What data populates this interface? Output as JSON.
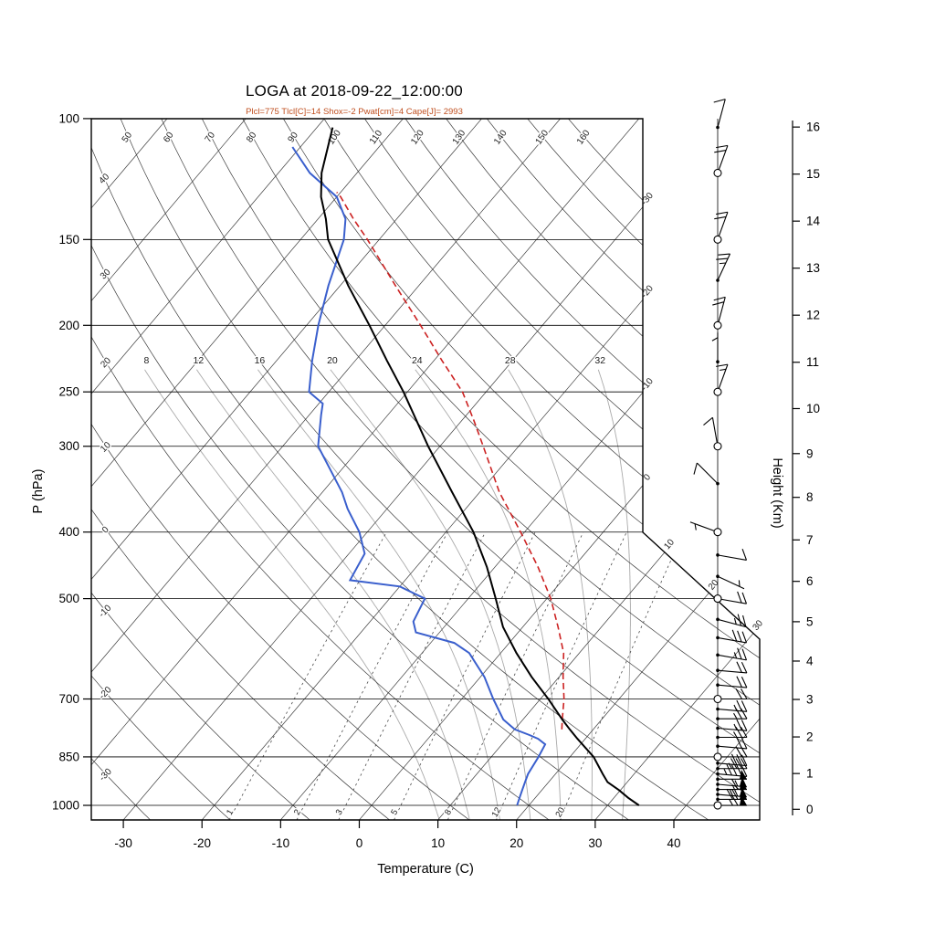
{
  "chart_data": {
    "type": "skewt_log_p",
    "title": "LOGA at 2018-09-22_12:00:00",
    "subtitle": "Plcl=775 Tlcl[C]=14 Shox=-2 Pwat[cm]=4 Cape[J]= 2993",
    "xlabel": "Temperature (C)",
    "ylabel_left": "P (hPa)",
    "ylabel_right": "Height (Km)",
    "axes": {
      "pressure_ticks": [
        100,
        150,
        200,
        250,
        300,
        400,
        500,
        700,
        850,
        1000
      ],
      "pressure_range_hpa": [
        100,
        1050
      ],
      "temperature_ticks_c": [
        -30,
        -20,
        -10,
        0,
        10,
        20,
        30,
        40
      ],
      "height_ticks_km": [
        0,
        1,
        2,
        3,
        4,
        5,
        6,
        7,
        8,
        9,
        10,
        11,
        12,
        13,
        14,
        15,
        16
      ]
    },
    "background": {
      "isotherms_c": {
        "min": -120,
        "max": 40,
        "step": 10
      },
      "dry_adiabats_c": {
        "min": -30,
        "max": 160,
        "step": 10
      },
      "dry_adiabat_top_labels": [
        50,
        60,
        70,
        80,
        90,
        100,
        110,
        120,
        130,
        140,
        150,
        160
      ],
      "dry_adiabat_left_labels": [
        40,
        30,
        20,
        10,
        0,
        -10,
        -20,
        -30
      ],
      "isotherm_edge_labels": [
        -30,
        -20,
        -10,
        0,
        10,
        20,
        30
      ],
      "moist_adiabats_c": [
        8,
        12,
        16,
        20,
        24,
        28,
        32
      ],
      "mixing_ratio_gkg": [
        1,
        2,
        3,
        5,
        8,
        12,
        20
      ]
    },
    "series": [
      {
        "name": "temperature",
        "units": "p_hpa_vs_degC",
        "points": [
          [
            1000,
            34
          ],
          [
            975,
            31.8
          ],
          [
            950,
            29.8
          ],
          [
            925,
            27.5
          ],
          [
            900,
            26
          ],
          [
            850,
            23
          ],
          [
            800,
            19
          ],
          [
            775,
            17
          ],
          [
            750,
            15
          ],
          [
            700,
            11
          ],
          [
            650,
            6.5
          ],
          [
            600,
            2
          ],
          [
            550,
            -2.5
          ],
          [
            500,
            -6.5
          ],
          [
            450,
            -11
          ],
          [
            400,
            -16.5
          ],
          [
            350,
            -23.5
          ],
          [
            300,
            -31.5
          ],
          [
            250,
            -40.5
          ],
          [
            225,
            -46
          ],
          [
            200,
            -52
          ],
          [
            175,
            -59
          ],
          [
            150,
            -66.5
          ],
          [
            140,
            -69
          ],
          [
            130,
            -72
          ],
          [
            120,
            -74.5
          ],
          [
            110,
            -76.5
          ],
          [
            103,
            -78
          ]
        ]
      },
      {
        "name": "dewpoint",
        "units": "p_hpa_vs_degC",
        "points": [
          [
            1000,
            18.5
          ],
          [
            975,
            18
          ],
          [
            950,
            17.5
          ],
          [
            925,
            17
          ],
          [
            900,
            16.5
          ],
          [
            850,
            16
          ],
          [
            815,
            15.5
          ],
          [
            800,
            14
          ],
          [
            790,
            12.5
          ],
          [
            775,
            10
          ],
          [
            750,
            7.5
          ],
          [
            700,
            4
          ],
          [
            650,
            0.5
          ],
          [
            600,
            -4
          ],
          [
            580,
            -7
          ],
          [
            560,
            -13
          ],
          [
            540,
            -14.5
          ],
          [
            500,
            -15.5
          ],
          [
            480,
            -20
          ],
          [
            470,
            -27
          ],
          [
            450,
            -27.5
          ],
          [
            430,
            -28
          ],
          [
            400,
            -31
          ],
          [
            370,
            -35
          ],
          [
            350,
            -37.5
          ],
          [
            300,
            -45.5
          ],
          [
            270,
            -48.5
          ],
          [
            260,
            -49.5
          ],
          [
            250,
            -52.5
          ],
          [
            225,
            -55.5
          ],
          [
            200,
            -58.5
          ],
          [
            175,
            -61.5
          ],
          [
            150,
            -64.5
          ],
          [
            140,
            -66.5
          ],
          [
            130,
            -70
          ],
          [
            120,
            -76
          ],
          [
            110,
            -81
          ]
        ]
      },
      {
        "name": "parcel",
        "units": "p_hpa_vs_degC",
        "dashed": true,
        "points": [
          [
            775,
            16
          ],
          [
            750,
            15
          ],
          [
            700,
            13
          ],
          [
            650,
            10.5
          ],
          [
            600,
            8
          ],
          [
            550,
            4.5
          ],
          [
            500,
            0.5
          ],
          [
            450,
            -4.5
          ],
          [
            400,
            -10.5
          ],
          [
            350,
            -17.5
          ],
          [
            300,
            -24.5
          ],
          [
            275,
            -28.5
          ],
          [
            250,
            -33
          ],
          [
            225,
            -39
          ],
          [
            200,
            -45.5
          ],
          [
            175,
            -53
          ],
          [
            150,
            -61.5
          ],
          [
            140,
            -65.5
          ],
          [
            130,
            -69.5
          ],
          [
            128,
            -70.5
          ]
        ]
      }
    ],
    "wind_barbs_kt": [
      {
        "p": 103,
        "spd": 10,
        "dir": 15,
        "major": false
      },
      {
        "p": 120,
        "spd": 20,
        "dir": 20,
        "major": true
      },
      {
        "p": 150,
        "spd": 20,
        "dir": 20,
        "major": true
      },
      {
        "p": 172,
        "spd": 25,
        "dir": 25,
        "major": false
      },
      {
        "p": 200,
        "spd": 20,
        "dir": 15,
        "major": true
      },
      {
        "p": 226,
        "spd": 3,
        "dir": 0,
        "major": false
      },
      {
        "p": 250,
        "spd": 15,
        "dir": 20,
        "major": true
      },
      {
        "p": 300,
        "spd": 8,
        "dir": 350,
        "major": true
      },
      {
        "p": 340,
        "spd": 8,
        "dir": 315,
        "major": false
      },
      {
        "p": 400,
        "spd": 5,
        "dir": 290,
        "major": true
      },
      {
        "p": 432,
        "spd": 10,
        "dir": 100,
        "major": false
      },
      {
        "p": 464,
        "spd": 5,
        "dir": 115,
        "major": false
      },
      {
        "p": 500,
        "spd": 20,
        "dir": 100,
        "major": true
      },
      {
        "p": 536,
        "spd": 25,
        "dir": 105,
        "major": false
      },
      {
        "p": 570,
        "spd": 30,
        "dir": 100,
        "major": false
      },
      {
        "p": 604,
        "spd": 25,
        "dir": 100,
        "major": false
      },
      {
        "p": 636,
        "spd": 20,
        "dir": 95,
        "major": false
      },
      {
        "p": 668,
        "spd": 20,
        "dir": 95,
        "major": false
      },
      {
        "p": 700,
        "spd": 20,
        "dir": 90,
        "major": true
      },
      {
        "p": 724,
        "spd": 25,
        "dir": 95,
        "major": false
      },
      {
        "p": 748,
        "spd": 25,
        "dir": 90,
        "major": false
      },
      {
        "p": 772,
        "spd": 25,
        "dir": 95,
        "major": false
      },
      {
        "p": 796,
        "spd": 25,
        "dir": 90,
        "major": false
      },
      {
        "p": 820,
        "spd": 20,
        "dir": 95,
        "major": false
      },
      {
        "p": 850,
        "spd": 20,
        "dir": 90,
        "major": true
      },
      {
        "p": 868,
        "spd": 30,
        "dir": 95,
        "major": false
      },
      {
        "p": 884,
        "spd": 35,
        "dir": 90,
        "major": false
      },
      {
        "p": 900,
        "spd": 45,
        "dir": 95,
        "major": false
      },
      {
        "p": 916,
        "spd": 50,
        "dir": 90,
        "major": false
      },
      {
        "p": 932,
        "spd": 55,
        "dir": 95,
        "major": false
      },
      {
        "p": 948,
        "spd": 60,
        "dir": 90,
        "major": false
      },
      {
        "p": 964,
        "spd": 65,
        "dir": 95,
        "major": false
      },
      {
        "p": 980,
        "spd": 70,
        "dir": 90,
        "major": false
      },
      {
        "p": 1000,
        "spd": 65,
        "dir": 90,
        "major": true
      }
    ],
    "colors": {
      "temperature": "#000000",
      "dewpoint": "#3a5fcd",
      "parcel": "#cc2222",
      "annotation_text": "#c05020",
      "background_lines": "#3c3c3c",
      "moist_adiabat": "#aaaaaa"
    }
  }
}
